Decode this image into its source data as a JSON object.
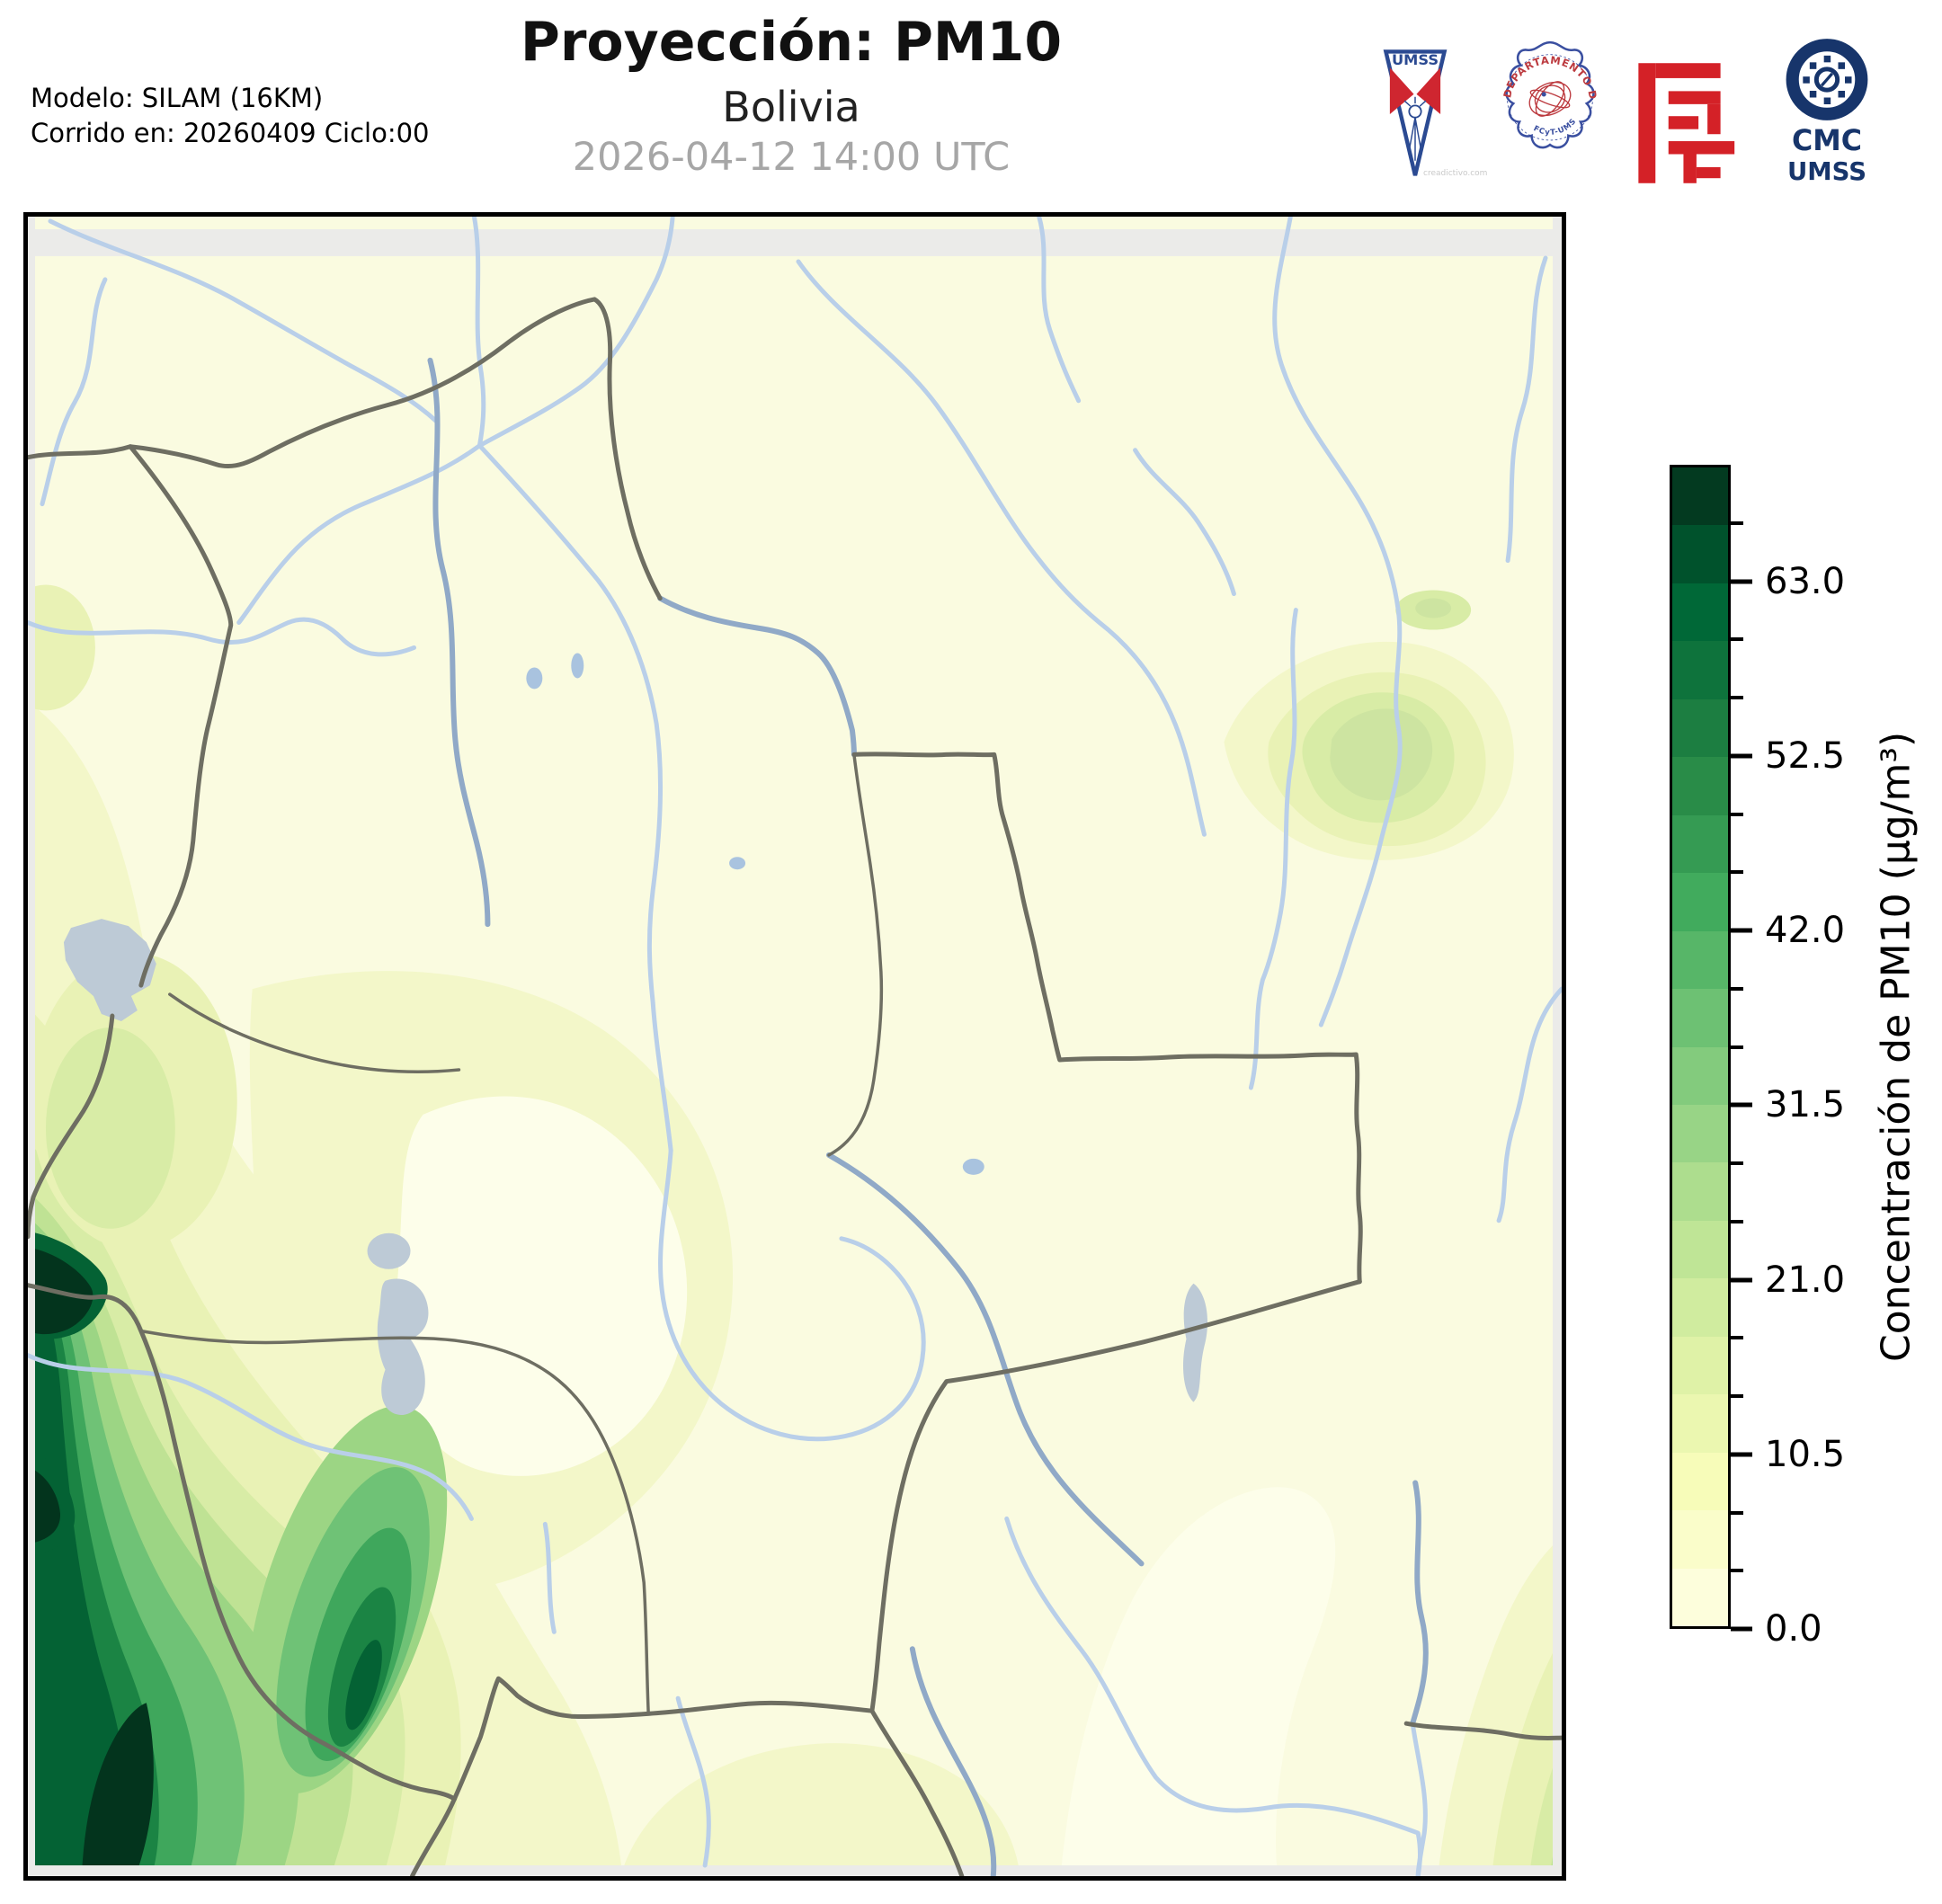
{
  "header": {
    "title": "Proyección: PM10",
    "subtitle": "Bolivia",
    "datetime": "2026-04-12 14:00 UTC",
    "model_line1": "Modelo: SILAM (16KM)",
    "model_line2": "Corrido en: 20260409 Ciclo:00"
  },
  "logos": {
    "umss": {
      "label": "UMSS",
      "watermark": "creadictivo.com",
      "blue": "#2b4a92",
      "red": "#cf2630"
    },
    "fisica": {
      "ring_text": "DEPARTAMENTO DE FÍSICA",
      "bottom_text": "FCyT-UMSS",
      "blue": "#3a4fa0",
      "red": "#bc3a3f"
    },
    "fcyt": {
      "red": "#d42127"
    },
    "cmc": {
      "line1": "CMC",
      "line2": "UMSS",
      "navy": "#17356b"
    }
  },
  "colorbar": {
    "label": "Concentración de PM10 (µg/m³)",
    "min": 0,
    "max": 70,
    "minor_step": 3.5,
    "major_ticks": [
      {
        "value": 63.0,
        "label": "63.0"
      },
      {
        "value": 52.5,
        "label": "52.5"
      },
      {
        "value": 42.0,
        "label": "42.0"
      },
      {
        "value": 31.5,
        "label": "31.5"
      },
      {
        "value": 21.0,
        "label": "21.0"
      },
      {
        "value": 10.5,
        "label": "10.5"
      },
      {
        "value": 0.0,
        "label": "0.0"
      }
    ],
    "band_colors_bottom_to_top": [
      "#fdfedc",
      "#fafdca",
      "#f7fcb9",
      "#ebf7b0",
      "#dff2a7",
      "#d0ec9f",
      "#bfe596",
      "#addd8e",
      "#98d486",
      "#83cb7d",
      "#6dc173",
      "#57b668",
      "#41ab5d",
      "#359b53",
      "#298c48",
      "#1c7e41",
      "#0e733c",
      "#006837",
      "#00522c",
      "#033a20"
    ]
  },
  "map": {
    "palette": {
      "background": "#fafbe0",
      "domain_edge": "#ebebe9",
      "white_patch": "#fdfeea",
      "green1": "#f3f7c9",
      "green2": "#e9f2b5",
      "green3": "#d8eca6",
      "green4": "#bfe294",
      "green5": "#9cd584",
      "green6": "#6fc276",
      "green7": "#3fa75c",
      "green8": "#1b8444",
      "green9": "#046234",
      "green10": "#03341d",
      "spot_core": "#cde4a1",
      "river": "#b9cfe9",
      "river_dark": "#90a9c7",
      "lake": "#bdcad6",
      "small_lake": "#a9c3df",
      "boundary": "#6e6e62"
    }
  }
}
